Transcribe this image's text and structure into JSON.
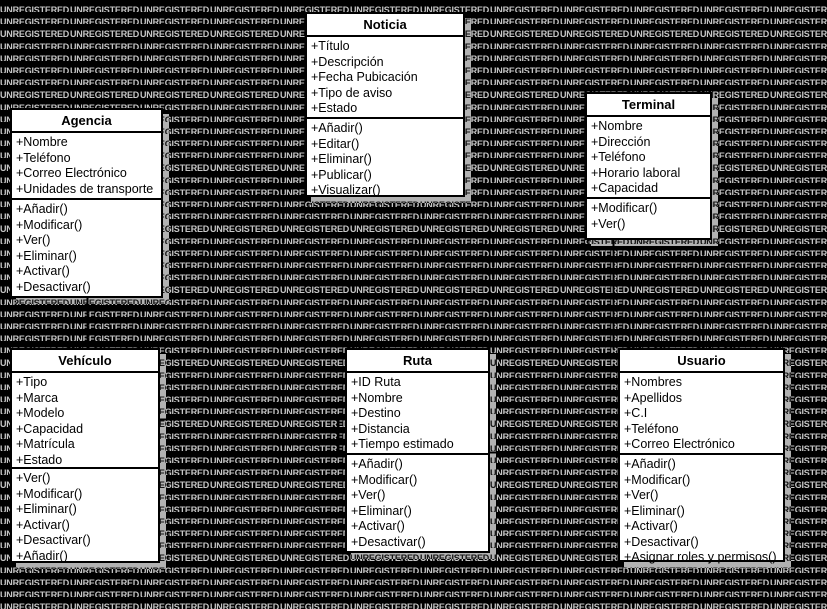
{
  "watermark": {
    "text": "UNREGISTERED",
    "color": "#c6c6c6"
  },
  "diagram": {
    "background_color": "#000000",
    "box_fill": "#ffffff",
    "border_color": "#000000",
    "shadow_color": "#b2b2b2",
    "classes": [
      {
        "name": "Agencia",
        "attributes": [
          "+Nombre",
          "+Teléfono",
          "+Correo Electrónico",
          "+Unidades de transporte"
        ],
        "methods": [
          "+Añadir()",
          "+Modificar()",
          "+Ver()",
          "+Eliminar()",
          "+Activar()",
          "+Desactivar()"
        ]
      },
      {
        "name": "Noticia",
        "attributes": [
          "+Título",
          "+Descripción",
          "+Fecha Pubicación",
          "+Tipo de aviso",
          "+Estado"
        ],
        "methods": [
          "+Añadir()",
          "+Editar()",
          "+Eliminar()",
          "+Publicar()",
          "+Visualizar()"
        ]
      },
      {
        "name": "Terminal",
        "attributes": [
          "+Nombre",
          "+Dirección",
          "+Teléfono",
          "+Horario laboral",
          "+Capacidad"
        ],
        "methods": [
          "+Modificar()",
          "+Ver()"
        ]
      },
      {
        "name": "Vehículo",
        "attributes": [
          "+Tipo",
          "+Marca",
          "+Modelo",
          "+Capacidad",
          "+Matrícula",
          "+Estado"
        ],
        "methods": [
          "+Ver()",
          "+Modificar()",
          "+Eliminar()",
          "+Activar()",
          "+Desactivar()",
          "+Añadir()"
        ]
      },
      {
        "name": "Ruta",
        "attributes": [
          "+ID Ruta",
          "+Nombre",
          "+Destino",
          "+Distancia",
          "+Tiempo estimado"
        ],
        "methods": [
          "+Añadir()",
          "+Modificar()",
          "+Ver()",
          "+Eliminar()",
          "+Activar()",
          "+Desactivar()"
        ]
      },
      {
        "name": "Usuario",
        "attributes": [
          "+Nombres",
          "+Apellidos",
          "+C.I",
          "+Teléfono",
          "+Correo Electrónico"
        ],
        "methods": [
          "+Añadir()",
          "+Modificar()",
          "+Ver()",
          "+Eliminar()",
          "+Activar()",
          "+Desactivar()",
          "+Asignar roles y permisos()"
        ]
      }
    ],
    "relationships": [
      {
        "from": "Agencia",
        "to": "Vehículo"
      },
      {
        "from": "Vehículo",
        "to": "Ruta"
      },
      {
        "from": "Ruta",
        "to": "Usuario"
      },
      {
        "from": "Terminal",
        "to": "Usuario"
      }
    ]
  }
}
